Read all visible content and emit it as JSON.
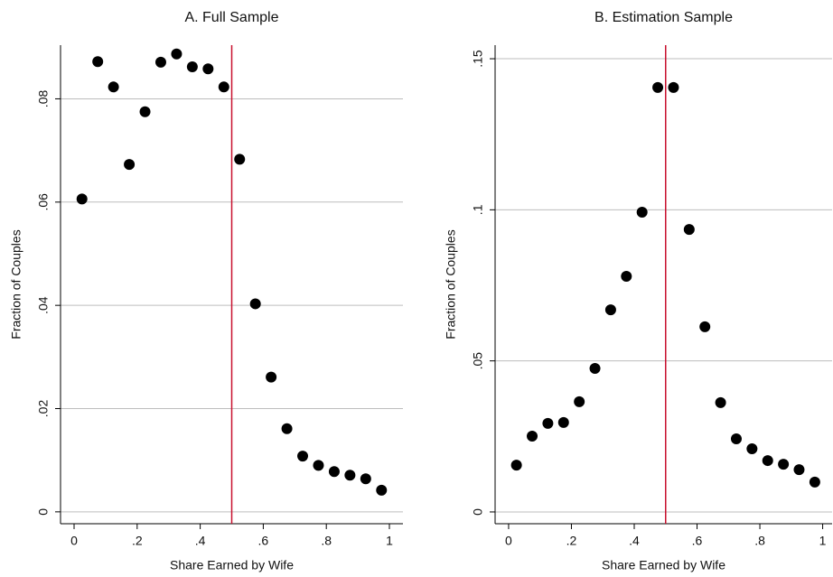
{
  "chart_data": [
    {
      "type": "scatter",
      "title": "A. Full Sample",
      "xlabel": "Share Earned by Wife",
      "ylabel": "Fraction of Couples",
      "color": "#000000",
      "vline": 0.5,
      "vline_color": "#c8102e",
      "grid": true,
      "x": [
        0.025,
        0.075,
        0.125,
        0.175,
        0.225,
        0.275,
        0.325,
        0.375,
        0.425,
        0.475,
        0.525,
        0.575,
        0.625,
        0.675,
        0.725,
        0.775,
        0.825,
        0.875,
        0.925,
        0.975
      ],
      "values": [
        0.0606,
        0.0872,
        0.0823,
        0.0673,
        0.0775,
        0.0871,
        0.0887,
        0.0862,
        0.0858,
        0.0823,
        0.0683,
        0.0403,
        0.0261,
        0.0161,
        0.0108,
        0.009,
        0.0078,
        0.0071,
        0.0064,
        0.0042
      ],
      "xlim": [
        -0.043,
        1.043
      ],
      "ylim": [
        -0.0023,
        0.0904
      ],
      "xticks": [
        0,
        {
          "value": 0.2,
          "label": ".2"
        },
        {
          "value": 0.4,
          "label": ".4"
        },
        {
          "value": 0.6,
          "label": ".6"
        },
        {
          "value": 0.8,
          "label": ".8"
        },
        1
      ],
      "yticks": [
        0,
        {
          "value": 0.02,
          "label": ".02"
        },
        {
          "value": 0.04,
          "label": ".04"
        },
        {
          "value": 0.06,
          "label": ".06"
        },
        {
          "value": 0.08,
          "label": ".08"
        }
      ]
    },
    {
      "type": "scatter",
      "title": "B. Estimation Sample",
      "xlabel": "Share Earned by Wife",
      "ylabel": "Fraction of Couples",
      "color": "#000000",
      "vline": 0.5,
      "vline_color": "#c8102e",
      "grid": true,
      "x": [
        0.025,
        0.075,
        0.125,
        0.175,
        0.225,
        0.275,
        0.325,
        0.375,
        0.425,
        0.475,
        0.525,
        0.575,
        0.625,
        0.675,
        0.725,
        0.775,
        0.825,
        0.875,
        0.925,
        0.975
      ],
      "values": [
        0.0155,
        0.0251,
        0.0293,
        0.0296,
        0.0365,
        0.0475,
        0.0669,
        0.078,
        0.0992,
        0.1405,
        0.1405,
        0.0935,
        0.0613,
        0.0362,
        0.0242,
        0.0209,
        0.017,
        0.0158,
        0.014,
        0.0099
      ],
      "xlim": [
        -0.043,
        1.03
      ],
      "ylim": [
        -0.0039,
        0.1545
      ],
      "xticks": [
        0,
        {
          "value": 0.2,
          "label": ".2"
        },
        {
          "value": 0.4,
          "label": ".4"
        },
        {
          "value": 0.6,
          "label": ".6"
        },
        {
          "value": 0.8,
          "label": ".8"
        },
        1
      ],
      "yticks": [
        0,
        {
          "value": 0.05,
          "label": ".05"
        },
        {
          "value": 0.1,
          "label": ".1"
        },
        {
          "value": 0.15,
          "label": ".15"
        }
      ]
    }
  ]
}
